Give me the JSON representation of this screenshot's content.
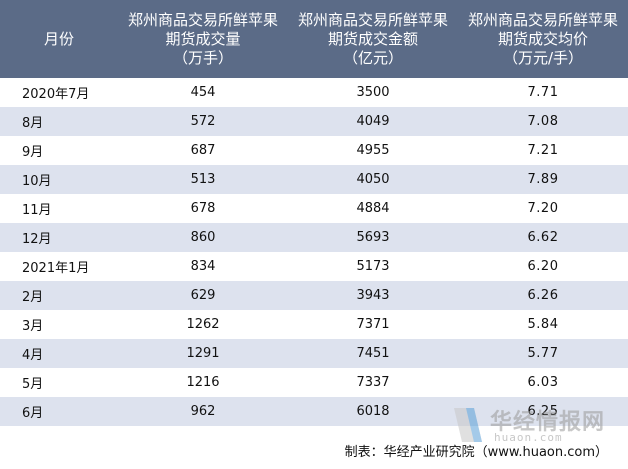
{
  "table": {
    "headers": [
      {
        "lines": [
          "月份"
        ]
      },
      {
        "lines": [
          "郑州商品交易所鲜苹果",
          "期货成交量",
          "（万手）"
        ]
      },
      {
        "lines": [
          "郑州商品交易所鲜苹果",
          "期货成交金额",
          "（亿元）"
        ]
      },
      {
        "lines": [
          "郑州商品交易所鲜苹果",
          "期货成交均价",
          "（万元/手）"
        ]
      }
    ],
    "rows": [
      [
        "2020年7月",
        "454",
        "3500",
        "7.71"
      ],
      [
        "8月",
        "572",
        "4049",
        "7.08"
      ],
      [
        "9月",
        "687",
        "4955",
        "7.21"
      ],
      [
        "10月",
        "513",
        "4050",
        "7.89"
      ],
      [
        "11月",
        "678",
        "4884",
        "7.20"
      ],
      [
        "12月",
        "860",
        "5693",
        "6.62"
      ],
      [
        "2021年1月",
        "834",
        "5173",
        "6.20"
      ],
      [
        "2月",
        "629",
        "3943",
        "6.26"
      ],
      [
        "3月",
        "1262",
        "7371",
        "5.84"
      ],
      [
        "4月",
        "1291",
        "7451",
        "5.77"
      ],
      [
        "5月",
        "1216",
        "7337",
        "6.03"
      ],
      [
        "6月",
        "962",
        "6018",
        "6.25"
      ]
    ]
  },
  "source": "制表：华经产业研究院（www.huaon.com）",
  "watermark": {
    "title": "华经情报网",
    "url": "huaon.com"
  },
  "colors": {
    "header_bg": "#5b6b87",
    "stripe": "#dde2ee",
    "header_text": "#ffffff"
  }
}
